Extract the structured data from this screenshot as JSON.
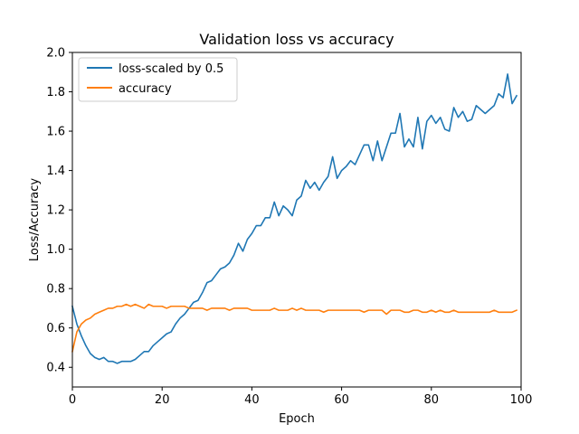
{
  "chart_data": {
    "type": "line",
    "title": "Validation loss vs accuracy",
    "xlabel": "Epoch",
    "ylabel": "Loss/Accuracy",
    "xlim": [
      0,
      100
    ],
    "ylim": [
      0.3,
      2.0
    ],
    "xticks": [
      0,
      20,
      40,
      60,
      80,
      100
    ],
    "yticks": [
      0.4,
      0.6,
      0.8,
      1.0,
      1.2,
      1.4,
      1.6,
      1.8,
      2.0
    ],
    "xtick_labels": [
      "0",
      "20",
      "40",
      "60",
      "80",
      "100"
    ],
    "ytick_labels": [
      "0.4",
      "0.6",
      "0.8",
      "1.0",
      "1.2",
      "1.4",
      "1.6",
      "1.8",
      "2.0"
    ],
    "grid": false,
    "legend_position": "top-left",
    "series": [
      {
        "name": "loss-scaled by 0.5",
        "color": "#1f77b4",
        "values": [
          0.71,
          0.62,
          0.56,
          0.51,
          0.47,
          0.45,
          0.44,
          0.45,
          0.43,
          0.43,
          0.42,
          0.43,
          0.43,
          0.43,
          0.44,
          0.46,
          0.48,
          0.48,
          0.51,
          0.53,
          0.55,
          0.57,
          0.58,
          0.62,
          0.65,
          0.67,
          0.7,
          0.73,
          0.74,
          0.78,
          0.83,
          0.84,
          0.87,
          0.9,
          0.91,
          0.93,
          0.97,
          1.03,
          0.99,
          1.05,
          1.08,
          1.12,
          1.12,
          1.16,
          1.16,
          1.24,
          1.17,
          1.22,
          1.2,
          1.17,
          1.25,
          1.27,
          1.35,
          1.31,
          1.34,
          1.3,
          1.34,
          1.37,
          1.47,
          1.36,
          1.4,
          1.42,
          1.45,
          1.43,
          1.48,
          1.53,
          1.53,
          1.45,
          1.55,
          1.45,
          1.52,
          1.59,
          1.59,
          1.69,
          1.52,
          1.56,
          1.52,
          1.67,
          1.51,
          1.65,
          1.68,
          1.64,
          1.67,
          1.61,
          1.6,
          1.72,
          1.67,
          1.7,
          1.65,
          1.66,
          1.73,
          1.71,
          1.69,
          1.71,
          1.73,
          1.79,
          1.77,
          1.89,
          1.74,
          1.78
        ]
      },
      {
        "name": "accuracy",
        "color": "#ff7f0e",
        "values": [
          0.48,
          0.58,
          0.62,
          0.64,
          0.65,
          0.67,
          0.68,
          0.69,
          0.7,
          0.7,
          0.71,
          0.71,
          0.72,
          0.71,
          0.72,
          0.71,
          0.7,
          0.72,
          0.71,
          0.71,
          0.71,
          0.7,
          0.71,
          0.71,
          0.71,
          0.71,
          0.7,
          0.7,
          0.7,
          0.7,
          0.69,
          0.7,
          0.7,
          0.7,
          0.7,
          0.69,
          0.7,
          0.7,
          0.7,
          0.7,
          0.69,
          0.69,
          0.69,
          0.69,
          0.69,
          0.7,
          0.69,
          0.69,
          0.69,
          0.7,
          0.69,
          0.7,
          0.69,
          0.69,
          0.69,
          0.69,
          0.68,
          0.69,
          0.69,
          0.69,
          0.69,
          0.69,
          0.69,
          0.69,
          0.69,
          0.68,
          0.69,
          0.69,
          0.69,
          0.69,
          0.67,
          0.69,
          0.69,
          0.69,
          0.68,
          0.68,
          0.69,
          0.69,
          0.68,
          0.68,
          0.69,
          0.68,
          0.69,
          0.68,
          0.68,
          0.69,
          0.68,
          0.68,
          0.68,
          0.68,
          0.68,
          0.68,
          0.68,
          0.68,
          0.69,
          0.68,
          0.68,
          0.68,
          0.68,
          0.69
        ]
      }
    ]
  }
}
